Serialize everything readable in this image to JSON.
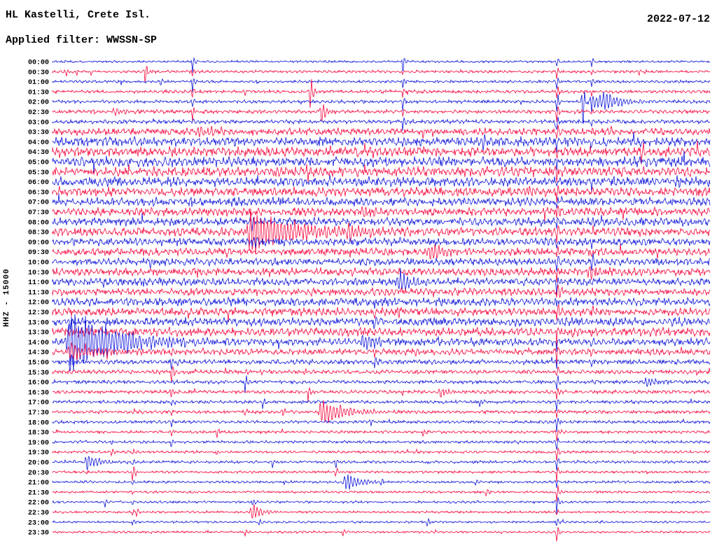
{
  "chart_data": {
    "type": "helicorder",
    "station_title": "HL Kastelli, Crete Isl.",
    "filter_label": "Applied filter: WWSSN-SP",
    "date_label": "2022-07-12",
    "y_axis_label": "HHZ - 15000",
    "colors": {
      "blue": "#0b13d8",
      "red": "#f5043b"
    },
    "row_color_pattern": [
      "blue",
      "red"
    ],
    "columns": [
      {
        "frac": 0.767,
        "amp": 15,
        "from": 0,
        "to": 47
      },
      {
        "frac": 0.82,
        "amp": 7,
        "from": 0,
        "to": 30
      },
      {
        "frac": 0.533,
        "amp": 7,
        "from": 0,
        "to": 9
      },
      {
        "frac": 0.213,
        "amp": 7,
        "from": 0,
        "to": 6
      },
      {
        "frac": 0.49,
        "amp": 7,
        "from": 20,
        "to": 30
      },
      {
        "frac": 0.181,
        "amp": 7,
        "from": 29,
        "to": 38
      },
      {
        "frac": 0.122,
        "amp": 6,
        "from": 39,
        "to": 46
      }
    ],
    "rows": [
      {
        "label": "00:00",
        "amp": 1.2,
        "events": [
          [
            0.213,
            10,
            1.5,
            2
          ],
          [
            0.533,
            12,
            1.5,
            2
          ]
        ]
      },
      {
        "label": "00:30",
        "amp": 1.5,
        "events": [
          [
            0.021,
            8,
            1.5,
            3
          ],
          [
            0.037,
            6,
            1.5,
            2
          ],
          [
            0.059,
            7,
            1.5,
            2
          ],
          [
            0.141,
            24,
            1.5,
            3
          ],
          [
            0.892,
            8,
            1.5,
            2
          ]
        ]
      },
      {
        "label": "01:00",
        "amp": 1.5,
        "events": [
          [
            0.165,
            7,
            1.5,
            2
          ],
          [
            0.213,
            9,
            1.5,
            2
          ],
          [
            0.533,
            10,
            1.5,
            2
          ]
        ]
      },
      {
        "label": "01:30",
        "amp": 1.8,
        "events": [
          [
            0.392,
            42,
            1.5,
            3
          ],
          [
            0.293,
            8,
            1.5,
            2
          ]
        ]
      },
      {
        "label": "02:00",
        "amp": 1.8,
        "events": [
          [
            0.807,
            38,
            2,
            4
          ],
          [
            0.82,
            14,
            8,
            30
          ],
          [
            0.841,
            10,
            4,
            15
          ],
          [
            0.533,
            10,
            1.5,
            2
          ]
        ]
      },
      {
        "label": "02:30",
        "amp": 2.0,
        "events": [
          [
            0.096,
            6,
            6,
            15
          ],
          [
            0.41,
            16,
            3,
            6
          ],
          [
            0.213,
            8,
            1.5,
            2
          ]
        ]
      },
      {
        "label": "03:00",
        "amp": 2.2,
        "events": [
          [
            0.765,
            9,
            1.5,
            3
          ],
          [
            0.533,
            9,
            1.5,
            2
          ]
        ]
      },
      {
        "label": "03:30",
        "amp": 3.8,
        "events": [
          [
            0.224,
            9,
            8,
            25
          ],
          [
            0.564,
            7,
            2,
            4
          ]
        ]
      },
      {
        "label": "04:00",
        "amp": 5.0,
        "events": [
          [
            0.655,
            18,
            2,
            4
          ],
          [
            0.533,
            8,
            1.5,
            2
          ]
        ]
      },
      {
        "label": "04:30",
        "amp": 5.0,
        "events": [
          [
            0.896,
            14,
            2,
            5
          ]
        ]
      },
      {
        "label": "05:00",
        "amp": 5.2,
        "events": [
          [
            0.474,
            7,
            2,
            4
          ]
        ]
      },
      {
        "label": "05:30",
        "amp": 5.2,
        "events": [
          [
            0.34,
            6,
            2,
            4
          ]
        ]
      },
      {
        "label": "06:00",
        "amp": 5.0,
        "events": [
          [
            0.948,
            8,
            2,
            4
          ]
        ]
      },
      {
        "label": "06:30",
        "amp": 4.8,
        "events": [
          [
            0.724,
            9,
            6,
            20
          ]
        ]
      },
      {
        "label": "07:00",
        "amp": 4.6,
        "events": [
          [
            0.208,
            10,
            2,
            4
          ]
        ]
      },
      {
        "label": "07:30",
        "amp": 4.4,
        "events": [
          [
            0.474,
            8,
            5,
            15
          ]
        ]
      },
      {
        "label": "08:00",
        "amp": 4.4,
        "events": [
          [
            0.304,
            9,
            2,
            5
          ]
        ]
      },
      {
        "label": "08:30",
        "amp": 4.6,
        "events": [
          [
            0.304,
            36,
            6,
            55
          ],
          [
            0.453,
            11,
            5,
            18
          ]
        ]
      },
      {
        "label": "09:00",
        "amp": 4.2,
        "events": [
          [
            0.304,
            8,
            3,
            10
          ],
          [
            0.527,
            7,
            2,
            5
          ]
        ]
      },
      {
        "label": "09:30",
        "amp": 4.0,
        "events": [
          [
            0.575,
            15,
            4,
            22
          ]
        ]
      },
      {
        "label": "10:00",
        "amp": 4.0,
        "events": [
          [
            0.149,
            11,
            2,
            4
          ],
          [
            0.82,
            9,
            2,
            5
          ]
        ]
      },
      {
        "label": "10:30",
        "amp": 4.2,
        "events": [
          [
            0.815,
            10,
            5,
            15
          ]
        ]
      },
      {
        "label": "11:00",
        "amp": 4.0,
        "events": [
          [
            0.527,
            17,
            4,
            26
          ]
        ]
      },
      {
        "label": "11:30",
        "amp": 4.0,
        "events": [
          [
            0.772,
            9,
            2,
            4
          ]
        ]
      },
      {
        "label": "12:00",
        "amp": 4.4,
        "events": [
          [
            0.469,
            9,
            2,
            4
          ]
        ]
      },
      {
        "label": "12:30",
        "amp": 4.4,
        "events": [
          [
            0.527,
            8,
            2,
            4
          ]
        ]
      },
      {
        "label": "13:00",
        "amp": 4.6,
        "events": [
          [
            0.027,
            7,
            2,
            4
          ]
        ]
      },
      {
        "label": "13:30",
        "amp": 4.6,
        "events": [
          [
            0.527,
            9,
            2,
            4
          ],
          [
            0.751,
            8,
            2,
            4
          ]
        ]
      },
      {
        "label": "14:00",
        "amp": 4.2,
        "events": [
          [
            0.027,
            44,
            5,
            70
          ],
          [
            0.474,
            12,
            4,
            12
          ]
        ]
      },
      {
        "label": "14:30",
        "amp": 3.2,
        "events": [
          [
            0.027,
            12,
            4,
            60
          ],
          [
            0.553,
            6,
            2,
            4
          ]
        ]
      },
      {
        "label": "15:00",
        "amp": 2.6,
        "events": [
          [
            0.027,
            16,
            2,
            6
          ],
          [
            0.181,
            7,
            1.5,
            3
          ]
        ]
      },
      {
        "label": "15:30",
        "amp": 2.2,
        "events": [
          [
            0.181,
            13,
            1.5,
            3
          ],
          [
            0.293,
            7,
            1.5,
            3
          ],
          [
            0.383,
            9,
            1.5,
            3
          ]
        ]
      },
      {
        "label": "16:00",
        "amp": 2.0,
        "events": [
          [
            0.293,
            18,
            1.5,
            3
          ],
          [
            0.905,
            9,
            4,
            12
          ]
        ]
      },
      {
        "label": "16:30",
        "amp": 1.9,
        "events": [
          [
            0.181,
            9,
            1.5,
            3
          ],
          [
            0.389,
            16,
            1.5,
            3
          ],
          [
            0.591,
            7,
            5,
            15
          ]
        ]
      },
      {
        "label": "17:00",
        "amp": 1.8,
        "events": [
          [
            0.32,
            11,
            1.5,
            3
          ],
          [
            0.65,
            9,
            1.5,
            3
          ]
        ]
      },
      {
        "label": "17:30",
        "amp": 1.8,
        "events": [
          [
            0.41,
            19,
            4,
            35
          ],
          [
            0.351,
            12,
            1.5,
            3
          ],
          [
            0.293,
            9,
            1.5,
            3
          ]
        ]
      },
      {
        "label": "18:00",
        "amp": 1.7,
        "events": [
          [
            0.485,
            7,
            1.5,
            3
          ]
        ]
      },
      {
        "label": "18:30",
        "amp": 1.6,
        "events": [
          [
            0.25,
            9,
            1.5,
            3
          ],
          [
            0.564,
            7,
            1.5,
            3
          ]
        ]
      },
      {
        "label": "19:00",
        "amp": 1.5,
        "events": [
          [
            0.09,
            6,
            1.5,
            3
          ]
        ]
      },
      {
        "label": "19:30",
        "amp": 1.5,
        "events": [
          [
            0.09,
            9,
            1.5,
            3
          ],
          [
            0.25,
            7,
            1.5,
            3
          ]
        ]
      },
      {
        "label": "20:00",
        "amp": 1.5,
        "events": [
          [
            0.053,
            13,
            4,
            16
          ],
          [
            0.335,
            9,
            1.5,
            3
          ],
          [
            0.431,
            11,
            1.5,
            3
          ]
        ]
      },
      {
        "label": "20:30",
        "amp": 1.4,
        "events": [
          [
            0.122,
            13,
            1.5,
            3
          ],
          [
            0.431,
            9,
            1.5,
            3
          ]
        ]
      },
      {
        "label": "21:00",
        "amp": 1.4,
        "events": [
          [
            0.447,
            15,
            4,
            20
          ],
          [
            0.5,
            8,
            1.5,
            3
          ],
          [
            0.644,
            6,
            1.5,
            3
          ]
        ]
      },
      {
        "label": "21:30",
        "amp": 1.3,
        "events": [
          [
            0.66,
            8,
            1.5,
            3
          ]
        ]
      },
      {
        "label": "22:00",
        "amp": 1.3,
        "events": [
          [
            0.08,
            8,
            1.5,
            3
          ],
          [
            0.304,
            9,
            1.5,
            3
          ]
        ]
      },
      {
        "label": "22:30",
        "amp": 1.3,
        "events": [
          [
            0.304,
            15,
            3,
            12
          ],
          [
            0.128,
            8,
            1.5,
            3
          ]
        ]
      },
      {
        "label": "23:00",
        "amp": 1.2,
        "events": [
          [
            0.57,
            10,
            1.5,
            3
          ],
          [
            0.314,
            8,
            1.5,
            3
          ]
        ]
      },
      {
        "label": "23:30",
        "amp": 1.2,
        "events": [
          [
            0.442,
            8,
            1.5,
            3
          ],
          [
            0.293,
            6,
            1.5,
            3
          ]
        ]
      }
    ]
  }
}
